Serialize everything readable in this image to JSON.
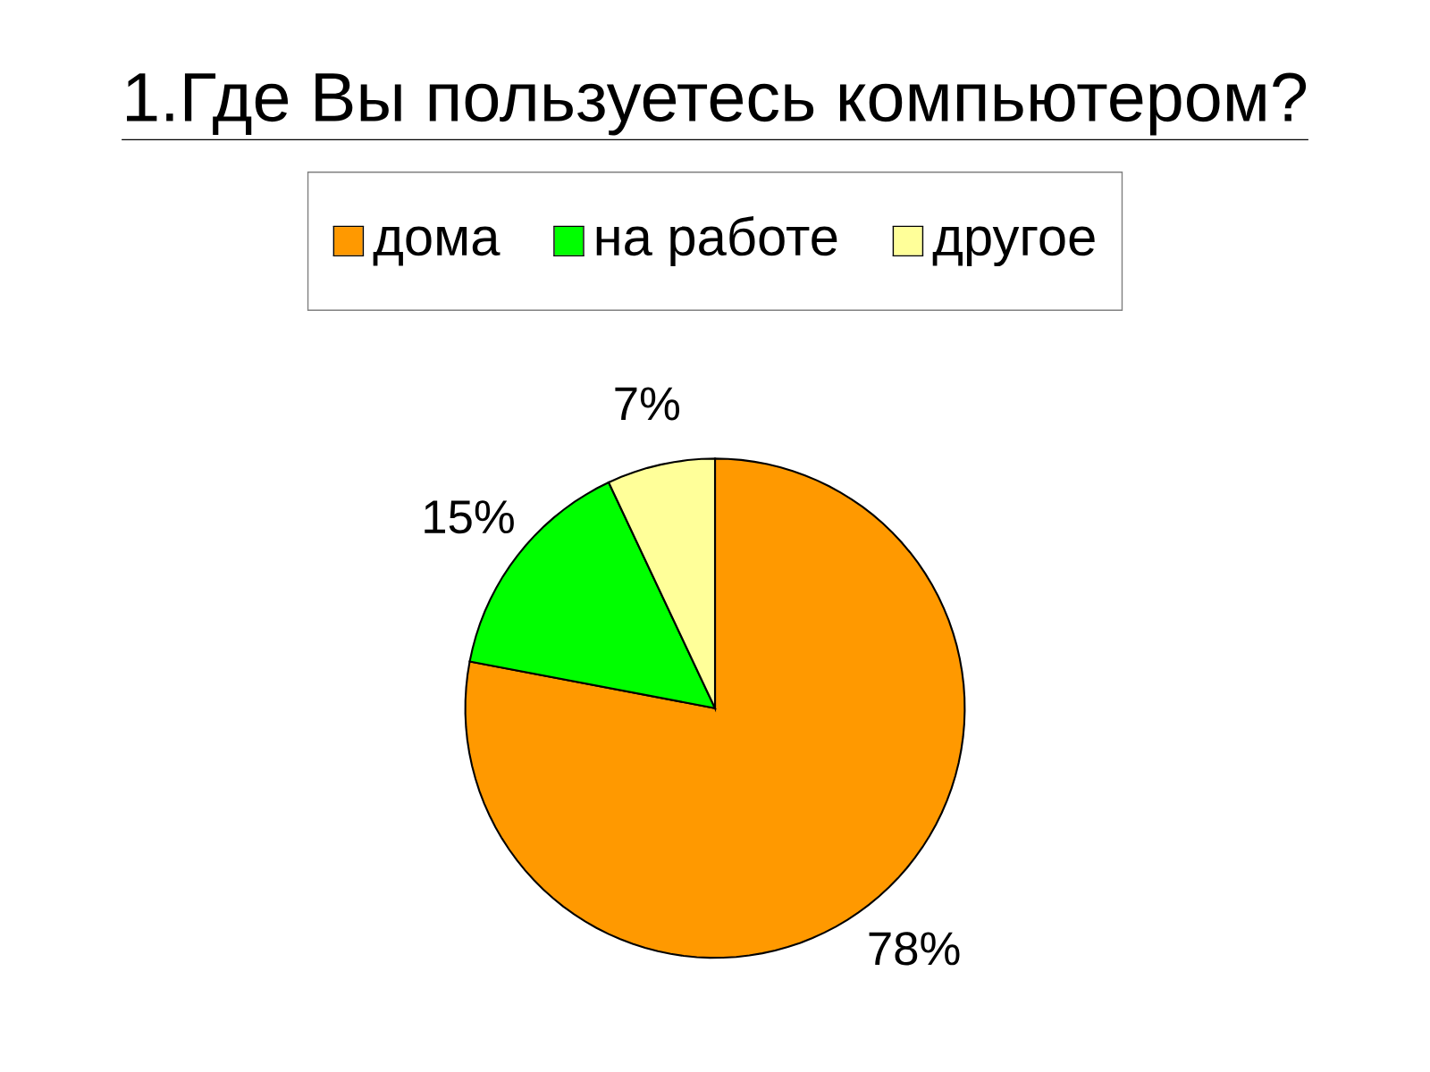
{
  "chart_data": {
    "type": "pie",
    "title": "1.Где Вы  пользуетесь компьютером?",
    "categories": [
      "дома",
      "на работе",
      "другое"
    ],
    "values": [
      78,
      15,
      7
    ],
    "value_labels": [
      "78%",
      "15%",
      "7%"
    ],
    "colors": [
      "#ff9900",
      "#00ff00",
      "#ffff99"
    ],
    "legend": "top"
  }
}
